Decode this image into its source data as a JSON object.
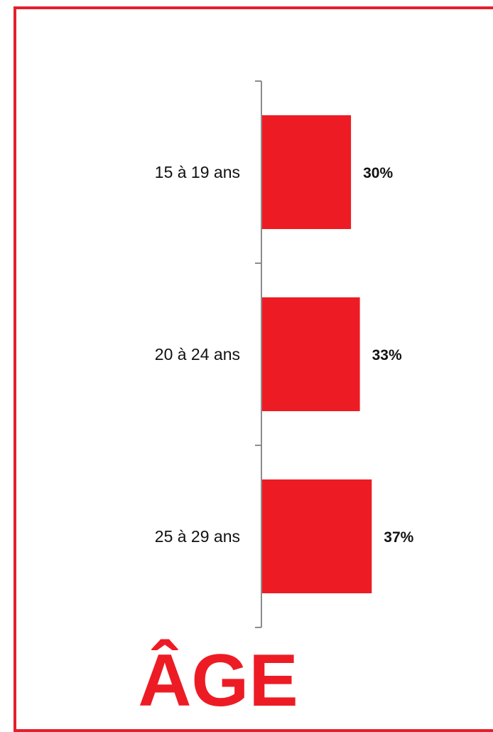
{
  "chart_data": {
    "type": "bar",
    "orientation": "horizontal",
    "categories": [
      "15 à 19 ans",
      "20 à 24 ans",
      "25 à 29 ans"
    ],
    "values": [
      30,
      33,
      37
    ],
    "value_labels": [
      "30%",
      "33%",
      "37%"
    ],
    "title": "ÂGE",
    "xlabel": "",
    "ylabel": "",
    "xlim": [
      0,
      100
    ],
    "grid": false,
    "legend": "none",
    "bar_color": "#ed1c24",
    "axis_color": "#8c8c8c"
  }
}
